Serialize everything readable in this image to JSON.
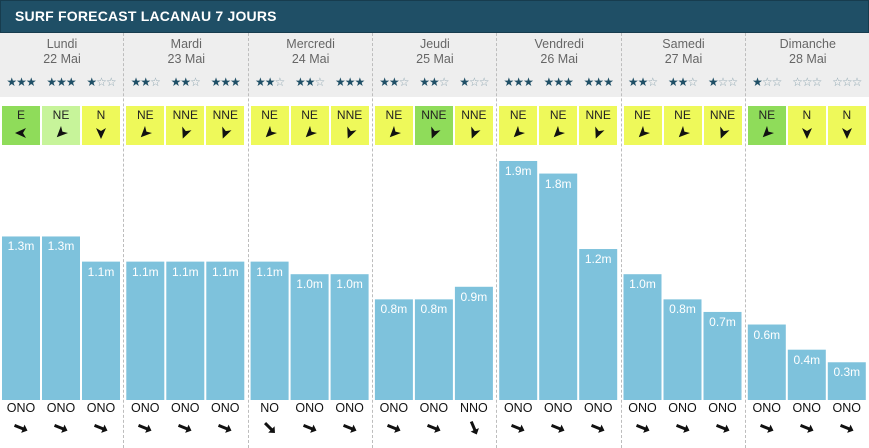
{
  "header": {
    "title": "SURF FORECAST LACANAU 7 JOURS"
  },
  "colors": {
    "header_bg": "#1f4f66",
    "bar": "#7ec2dc",
    "wind_yellow": "#eef95a",
    "wind_green": "#8fdc5a",
    "wind_lightgreen": "#c7f49a",
    "star": "#1f4f66"
  },
  "days": [
    {
      "name": "Lundi",
      "date": "22 Mai"
    },
    {
      "name": "Mardi",
      "date": "23 Mai"
    },
    {
      "name": "Mercredi",
      "date": "24 Mai"
    },
    {
      "name": "Jeudi",
      "date": "25 Mai"
    },
    {
      "name": "Vendredi",
      "date": "26 Mai"
    },
    {
      "name": "Samedi",
      "date": "27 Mai"
    },
    {
      "name": "Dimanche",
      "date": "28 Mai"
    }
  ],
  "ratings": [
    3,
    3,
    1,
    2,
    2,
    3,
    2,
    2,
    3,
    2,
    2,
    1,
    3,
    3,
    3,
    2,
    2,
    1,
    1,
    0,
    0
  ],
  "wind": [
    {
      "dir": "E",
      "color": "green"
    },
    {
      "dir": "NE",
      "color": "lightgreen"
    },
    {
      "dir": "N",
      "color": "yellow"
    },
    {
      "dir": "NE",
      "color": "yellow"
    },
    {
      "dir": "NNE",
      "color": "yellow"
    },
    {
      "dir": "NNE",
      "color": "yellow"
    },
    {
      "dir": "NE",
      "color": "yellow"
    },
    {
      "dir": "NE",
      "color": "yellow"
    },
    {
      "dir": "NNE",
      "color": "yellow"
    },
    {
      "dir": "NE",
      "color": "yellow"
    },
    {
      "dir": "NNE",
      "color": "green"
    },
    {
      "dir": "NNE",
      "color": "yellow"
    },
    {
      "dir": "NE",
      "color": "yellow"
    },
    {
      "dir": "NE",
      "color": "yellow"
    },
    {
      "dir": "NNE",
      "color": "yellow"
    },
    {
      "dir": "NE",
      "color": "yellow"
    },
    {
      "dir": "NE",
      "color": "yellow"
    },
    {
      "dir": "NNE",
      "color": "yellow"
    },
    {
      "dir": "NE",
      "color": "green"
    },
    {
      "dir": "N",
      "color": "yellow"
    },
    {
      "dir": "N",
      "color": "yellow"
    }
  ],
  "chart_data": {
    "type": "bar",
    "categories": [
      "Lundi 22 Mai",
      "Lundi 22 Mai",
      "Lundi 22 Mai",
      "Mardi 23 Mai",
      "Mardi 23 Mai",
      "Mardi 23 Mai",
      "Mercredi 24 Mai",
      "Mercredi 24 Mai",
      "Mercredi 24 Mai",
      "Jeudi 25 Mai",
      "Jeudi 25 Mai",
      "Jeudi 25 Mai",
      "Vendredi 26 Mai",
      "Vendredi 26 Mai",
      "Vendredi 26 Mai",
      "Samedi 27 Mai",
      "Samedi 27 Mai",
      "Samedi 27 Mai",
      "Dimanche 28 Mai",
      "Dimanche 28 Mai",
      "Dimanche 28 Mai"
    ],
    "values": [
      1.3,
      1.3,
      1.1,
      1.1,
      1.1,
      1.1,
      1.1,
      1.0,
      1.0,
      0.8,
      0.8,
      0.9,
      1.9,
      1.8,
      1.2,
      1.0,
      0.8,
      0.7,
      0.6,
      0.4,
      0.3
    ],
    "labels": [
      "1.3m",
      "1.3m",
      "1.1m",
      "1.1m",
      "1.1m",
      "1.1m",
      "1.1m",
      "1.0m",
      "1.0m",
      "0.8m",
      "0.8m",
      "0.9m",
      "1.9m",
      "1.8m",
      "1.2m",
      "1.0m",
      "0.8m",
      "0.7m",
      "0.6m",
      "0.4m",
      "0.3m"
    ],
    "unit": "m",
    "title": "",
    "xlabel": "",
    "ylabel": "",
    "ylim": [
      0,
      2.0
    ]
  },
  "swell_dirs": [
    "ONO",
    "ONO",
    "ONO",
    "ONO",
    "ONO",
    "ONO",
    "NO",
    "ONO",
    "ONO",
    "ONO",
    "ONO",
    "NNO",
    "ONO",
    "ONO",
    "ONO",
    "ONO",
    "ONO",
    "ONO",
    "ONO",
    "ONO",
    "ONO"
  ]
}
